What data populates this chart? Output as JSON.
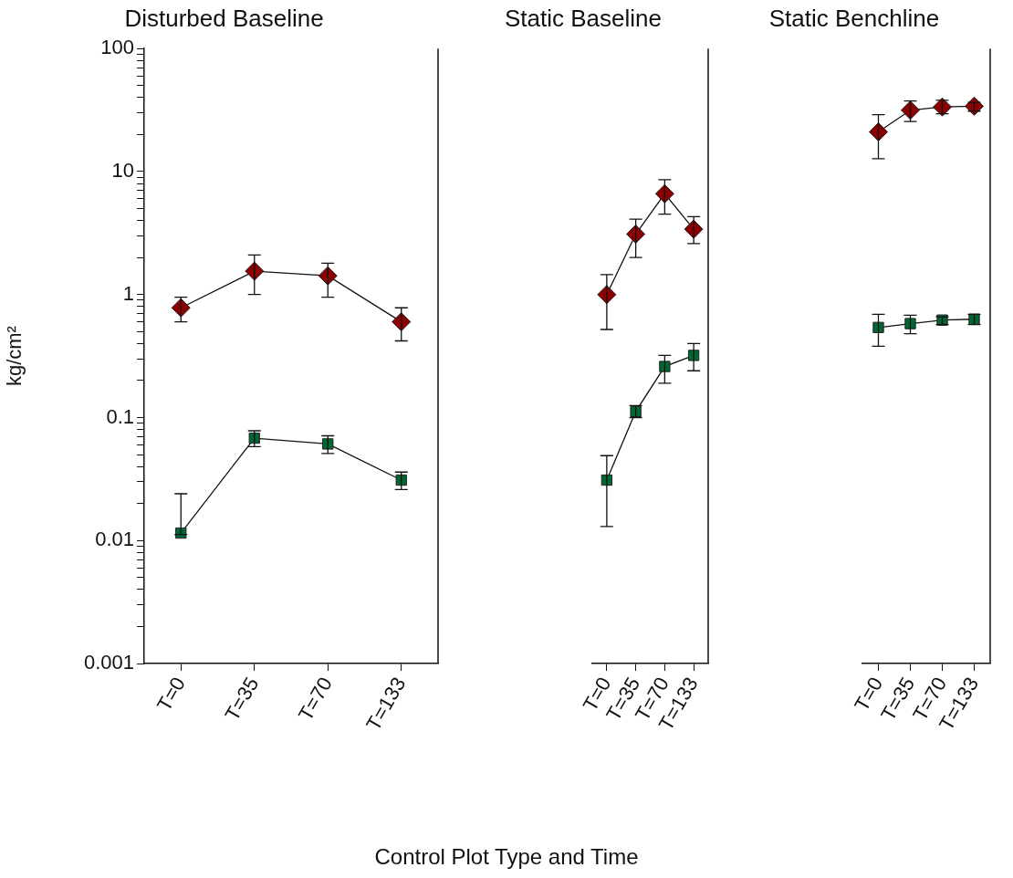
{
  "chart_data": [
    {
      "type": "line",
      "title": "Disturbed Baseline",
      "ylabel": "kg/cm²",
      "categories": [
        "T=0",
        "T=35",
        "T=70",
        "T=133"
      ],
      "log": "y",
      "grid": false,
      "ylim": [
        0.001,
        100
      ],
      "yticks": [
        0.001,
        {
          "value": 0.002,
          "label": null
        },
        {
          "value": 0.003,
          "label": null
        },
        {
          "value": 0.004,
          "label": null
        },
        {
          "value": 0.005,
          "label": null
        },
        {
          "value": 0.006,
          "label": null
        },
        {
          "value": 0.007,
          "label": null
        },
        {
          "value": 0.008,
          "label": null
        },
        {
          "value": 0.009,
          "label": null
        },
        0.01,
        {
          "value": 0.02,
          "label": null
        },
        {
          "value": 0.03,
          "label": null
        },
        {
          "value": 0.04,
          "label": null
        },
        {
          "value": 0.05,
          "label": null
        },
        {
          "value": 0.06,
          "label": null
        },
        {
          "value": 0.07,
          "label": null
        },
        {
          "value": 0.08,
          "label": null
        },
        {
          "value": 0.09,
          "label": null
        },
        0.1,
        {
          "value": 0.2,
          "label": null
        },
        {
          "value": 0.3,
          "label": null
        },
        {
          "value": 0.4,
          "label": null
        },
        {
          "value": 0.5,
          "label": null
        },
        {
          "value": 0.6,
          "label": null
        },
        {
          "value": 0.7,
          "label": null
        },
        {
          "value": 0.8,
          "label": null
        },
        {
          "value": 0.9,
          "label": null
        },
        1,
        {
          "value": 2,
          "label": null
        },
        {
          "value": 3,
          "label": null
        },
        {
          "value": 4,
          "label": null
        },
        {
          "value": 5,
          "label": null
        },
        {
          "value": 6,
          "label": null
        },
        {
          "value": 7,
          "label": null
        },
        {
          "value": 8,
          "label": null
        },
        {
          "value": 9,
          "label": null
        },
        10,
        {
          "value": 20,
          "label": null
        },
        {
          "value": 30,
          "label": null
        },
        {
          "value": 40,
          "label": null
        },
        {
          "value": 50,
          "label": null
        },
        {
          "value": 60,
          "label": null
        },
        {
          "value": 70,
          "label": null
        },
        {
          "value": 80,
          "label": null
        },
        {
          "value": 90,
          "label": null
        },
        100
      ],
      "series": [
        {
          "color": "#8b0000",
          "marker": "diamond",
          "values": [
            0.78,
            1.55,
            1.42,
            0.6
          ],
          "errors": [
            [
              0.6,
              0.95
            ],
            [
              1.0,
              2.1
            ],
            [
              0.95,
              1.8
            ],
            [
              0.42,
              0.78
            ]
          ]
        },
        {
          "color": "#006633",
          "marker": "square",
          "values": [
            0.0115,
            0.068,
            0.061,
            0.031
          ],
          "errors": [
            [
              0.0112,
              0.024
            ],
            [
              0.058,
              0.078
            ],
            [
              0.051,
              0.071
            ],
            [
              0.026,
              0.036
            ]
          ]
        }
      ]
    },
    {
      "type": "line",
      "title": "Static Baseline",
      "xlabel": "Control Plot Type and Time",
      "categories": [
        "T=0",
        "T=35",
        "T=70",
        "T=133"
      ],
      "log": "y",
      "grid": false,
      "ylim": [
        0.001,
        100
      ],
      "tick_labels": "x",
      "series": [
        {
          "color": "#8b0000",
          "marker": "diamond",
          "values": [
            1.0,
            3.1,
            6.6,
            3.4
          ],
          "errors": [
            [
              0.52,
              1.45
            ],
            [
              2.0,
              4.1
            ],
            [
              4.5,
              8.6
            ],
            [
              2.6,
              4.3
            ]
          ]
        },
        {
          "color": "#006633",
          "marker": "square",
          "values": [
            0.031,
            0.112,
            0.26,
            0.32
          ],
          "errors": [
            [
              0.013,
              0.049
            ],
            [
              0.1,
              0.125
            ],
            [
              0.19,
              0.32
            ],
            [
              0.24,
              0.4
            ]
          ]
        }
      ]
    },
    {
      "type": "line",
      "title": "Static Benchline",
      "categories": [
        "T=0",
        "T=35",
        "T=70",
        "T=133"
      ],
      "log": "y",
      "grid": false,
      "ylim": [
        0.001,
        100
      ],
      "tick_labels": "x",
      "series": [
        {
          "color": "#8b0000",
          "marker": "diamond",
          "values": [
            21,
            31.5,
            33.5,
            34
          ],
          "errors": [
            [
              12.7,
              29
            ],
            [
              25.5,
              37.5
            ],
            [
              29.5,
              38
            ],
            [
              31,
              36.5
            ]
          ]
        },
        {
          "color": "#006633",
          "marker": "square",
          "values": [
            0.54,
            0.58,
            0.62,
            0.63
          ],
          "errors": [
            [
              0.38,
              0.69
            ],
            [
              0.48,
              0.68
            ],
            [
              0.57,
              0.66
            ],
            [
              0.57,
              0.69
            ]
          ]
        }
      ]
    }
  ]
}
